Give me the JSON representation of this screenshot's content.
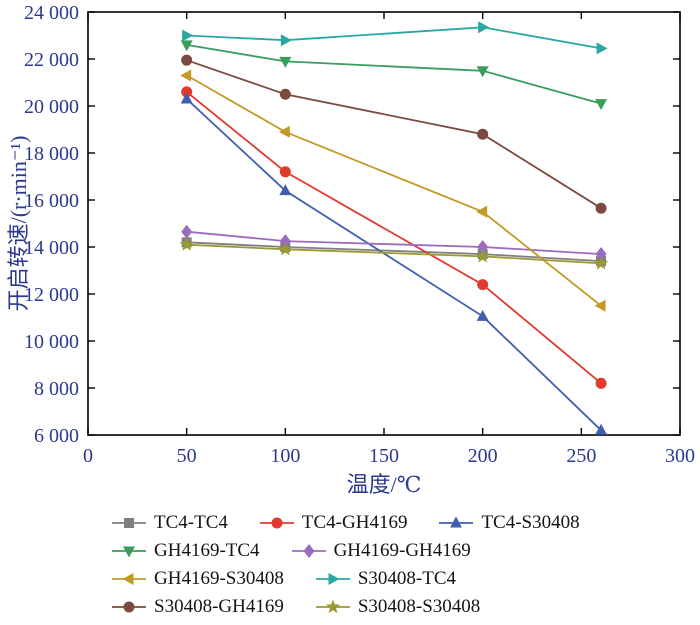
{
  "chart_data": {
    "type": "line",
    "title": "",
    "xlabel": "温度/℃",
    "ylabel": "开启转速/(r·min⁻¹)",
    "xlim": [
      0,
      300
    ],
    "ylim": [
      6000,
      24000
    ],
    "grid": false,
    "legend_position": "bottom",
    "axis_color": "#000000",
    "text_color": "#2b3990",
    "x": [
      50,
      100,
      200,
      260
    ],
    "x_ticks": [
      {
        "value": 0,
        "label": "0"
      },
      {
        "value": 50,
        "label": "50"
      },
      {
        "value": 100,
        "label": "100"
      },
      {
        "value": 150,
        "label": "150"
      },
      {
        "value": 200,
        "label": "200"
      },
      {
        "value": 250,
        "label": "250"
      },
      {
        "value": 300,
        "label": "300"
      }
    ],
    "y_ticks": [
      {
        "value": 6000,
        "label": "6 000"
      },
      {
        "value": 8000,
        "label": "8 000"
      },
      {
        "value": 10000,
        "label": "10 000"
      },
      {
        "value": 12000,
        "label": "12 000"
      },
      {
        "value": 14000,
        "label": "14 000"
      },
      {
        "value": 16000,
        "label": "16 000"
      },
      {
        "value": 18000,
        "label": "18 000"
      },
      {
        "value": 20000,
        "label": "20 000"
      },
      {
        "value": 22000,
        "label": "22 000"
      },
      {
        "value": 24000,
        "label": "24 000"
      }
    ],
    "series": [
      {
        "name": "TC4-TC4",
        "color": "#7f7f7f",
        "marker": "square",
        "values": [
          14200,
          14000,
          13700,
          13400
        ]
      },
      {
        "name": "TC4-GH4169",
        "color": "#e23a2e",
        "marker": "circle",
        "values": [
          20600,
          17200,
          12400,
          8200
        ]
      },
      {
        "name": "TC4-S30408",
        "color": "#3f5fae",
        "marker": "triangle-up",
        "values": [
          20300,
          16400,
          11050,
          6200
        ]
      },
      {
        "name": "GH4169-TC4",
        "color": "#3a9d5d",
        "marker": "triangle-down",
        "values": [
          22600,
          21900,
          21500,
          20100
        ]
      },
      {
        "name": "GH4169-GH4169",
        "color": "#9b6bbf",
        "marker": "diamond",
        "values": [
          14650,
          14250,
          14000,
          13700
        ]
      },
      {
        "name": "GH4169-S30408",
        "color": "#c39a27",
        "marker": "triangle-left",
        "values": [
          21300,
          18900,
          15500,
          11500
        ]
      },
      {
        "name": "S30408-TC4",
        "color": "#2aa7a0",
        "marker": "triangle-right",
        "values": [
          23000,
          22800,
          23350,
          22450
        ]
      },
      {
        "name": "S30408-GH4169",
        "color": "#7d4a3f",
        "marker": "circle",
        "values": [
          21950,
          20500,
          18800,
          15650
        ]
      },
      {
        "name": "S30408-S30408",
        "color": "#999a33",
        "marker": "star",
        "values": [
          14100,
          13900,
          13600,
          13300
        ]
      }
    ],
    "legend_rows": [
      [
        0,
        1,
        2
      ],
      [
        3,
        4
      ],
      [
        5,
        6
      ],
      [
        7,
        8
      ]
    ]
  }
}
